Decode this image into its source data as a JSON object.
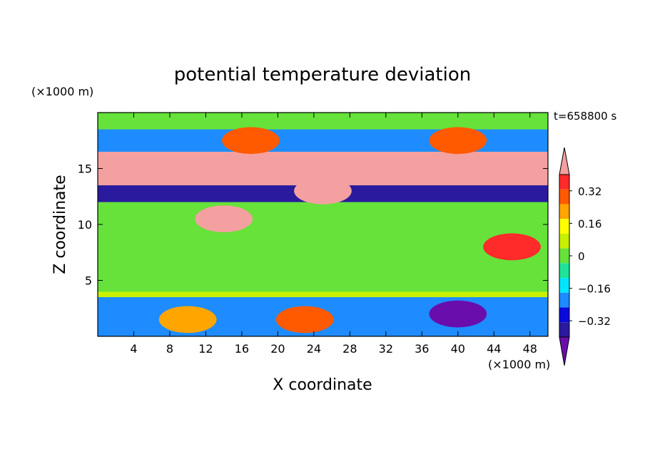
{
  "chart_data": {
    "type": "heatmap",
    "title": "potential temperature deviation",
    "xlabel": "X coordinate",
    "ylabel": "Z coordinate",
    "x_unit": "(×1000 m)",
    "y_unit": "(×1000 m)",
    "time_label": "t=658800 s",
    "xlim": [
      0,
      50
    ],
    "ylim": [
      0,
      20
    ],
    "x_ticks": [
      4,
      8,
      12,
      16,
      20,
      24,
      28,
      32,
      36,
      40,
      44,
      48
    ],
    "y_ticks": [
      5,
      10,
      15
    ],
    "colorbar": {
      "levels": [
        -0.48,
        -0.4,
        -0.32,
        -0.24,
        -0.16,
        -0.08,
        0,
        0.08,
        0.16,
        0.24,
        0.32,
        0.4,
        0.48
      ],
      "tick_values": [
        0.32,
        0.16,
        0,
        -0.16,
        -0.32
      ],
      "tick_labels": [
        "0.32",
        "0.16",
        "0",
        "−0.16",
        "−0.32"
      ],
      "colors": [
        "#6a0dad",
        "#2a1a9e",
        "#0a0adc",
        "#1e8cff",
        "#00e5ff",
        "#1fe39a",
        "#66e23a",
        "#c8f000",
        "#ffff00",
        "#ffa500",
        "#ff5a00",
        "#ff2a2a",
        "#f4a0a0"
      ],
      "extend": "both"
    },
    "bands": [
      {
        "z": [
          0.0,
          3.5
        ],
        "value": -0.18
      },
      {
        "z": [
          3.5,
          4.0
        ],
        "value": 0.1
      },
      {
        "z": [
          4.0,
          12.0
        ],
        "value": 0.05
      },
      {
        "z": [
          12.0,
          13.5
        ],
        "value": -0.36
      },
      {
        "z": [
          13.5,
          16.5
        ],
        "value": 0.5
      },
      {
        "z": [
          16.5,
          18.5
        ],
        "value": -0.2
      },
      {
        "z": [
          18.5,
          20.0
        ],
        "value": 0.05
      }
    ],
    "features": [
      {
        "x": 40,
        "z": 2.0,
        "value": -0.45
      },
      {
        "x": 23,
        "z": 1.5,
        "value": 0.35
      },
      {
        "x": 10,
        "z": 1.5,
        "value": 0.3
      },
      {
        "x": 14,
        "z": 10.5,
        "value": 0.48
      },
      {
        "x": 17,
        "z": 17.5,
        "value": 0.33
      },
      {
        "x": 40,
        "z": 17.5,
        "value": 0.33
      },
      {
        "x": 25,
        "z": 13.0,
        "value": 0.5
      },
      {
        "x": 46,
        "z": 8.0,
        "value": 0.45
      }
    ]
  }
}
